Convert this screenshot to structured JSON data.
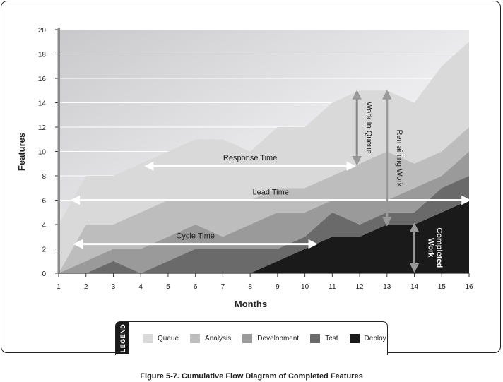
{
  "chart_data": {
    "type": "area",
    "title": "",
    "xlabel": "Months",
    "ylabel": "Features",
    "x": [
      1,
      2,
      3,
      4,
      5,
      6,
      7,
      8,
      9,
      10,
      11,
      12,
      13,
      14,
      15,
      16
    ],
    "xlim": [
      1,
      16
    ],
    "ylim": [
      0,
      20
    ],
    "x_ticks": [
      "1",
      "2",
      "3",
      "4",
      "5",
      "6",
      "7",
      "8",
      "9",
      "10",
      "11",
      "12",
      "13",
      "14",
      "15",
      "16"
    ],
    "y_ticks": [
      "0",
      "2",
      "4",
      "6",
      "8",
      "10",
      "12",
      "14",
      "16",
      "18",
      "20"
    ],
    "stacked": true,
    "grid": true,
    "legend_position": "bottom",
    "series": [
      {
        "name": "Deploy",
        "color": "#1a1a1a",
        "values": [
          0,
          0,
          0,
          0,
          0,
          0,
          0,
          0,
          1,
          2,
          3,
          3,
          4,
          4,
          5,
          6
        ]
      },
      {
        "name": "Test",
        "color": "#6a6a6a",
        "values": [
          0,
          0,
          1,
          0,
          1,
          2,
          2,
          2,
          1,
          1,
          2,
          1,
          1,
          1,
          2,
          2
        ]
      },
      {
        "name": "Development",
        "color": "#9a9a9a",
        "values": [
          0,
          1,
          1,
          2,
          2,
          2,
          1,
          2,
          3,
          2,
          1,
          2,
          1,
          2,
          1,
          2
        ]
      },
      {
        "name": "Analysis",
        "color": "#bdbdbd",
        "values": [
          0,
          3,
          2,
          3,
          3,
          2,
          3,
          2,
          2,
          2,
          2,
          3,
          4,
          2,
          2,
          2
        ]
      },
      {
        "name": "Queue",
        "color": "#d9d9d9",
        "values": [
          4,
          4,
          4,
          4,
          4,
          5,
          5,
          4,
          5,
          5,
          6,
          6,
          5,
          5,
          7,
          7
        ]
      }
    ],
    "annotations": [
      {
        "text": "Response Time",
        "x_start": 4.2,
        "x_end": 11.8,
        "y": 8.8,
        "color": "#ffffff",
        "orientation": "horizontal"
      },
      {
        "text": "Lead Time",
        "x_start": 1.5,
        "x_end": 16,
        "y": 6.0,
        "color": "#ffffff",
        "orientation": "horizontal"
      },
      {
        "text": "Cycle Time",
        "x_start": 1.6,
        "x_end": 10.4,
        "y": 2.4,
        "color": "#ffffff",
        "orientation": "horizontal"
      },
      {
        "text": "Work In Queue",
        "x": 11.9,
        "y_start": 9.0,
        "y_end": 14.9,
        "color": "#888888",
        "orientation": "vertical"
      },
      {
        "text": "Remaining Work",
        "x": 13.0,
        "y_start": 4.0,
        "y_end": 14.9,
        "color": "#999999",
        "orientation": "vertical"
      },
      {
        "text": "Completed Work",
        "x": 14.0,
        "y_start": 0.2,
        "y_end": 4.0,
        "color": "#999999",
        "orientation": "vertical"
      }
    ]
  },
  "legend": {
    "title": "LEGEND",
    "items": [
      {
        "label": "Queue",
        "color": "#d9d9d9"
      },
      {
        "label": "Analysis",
        "color": "#bdbdbd"
      },
      {
        "label": "Development",
        "color": "#9a9a9a"
      },
      {
        "label": "Test",
        "color": "#6a6a6a"
      },
      {
        "label": "Deploy",
        "color": "#1a1a1a"
      }
    ]
  },
  "caption": "Figure 5-7. Cumulative Flow Diagram of Completed Features"
}
